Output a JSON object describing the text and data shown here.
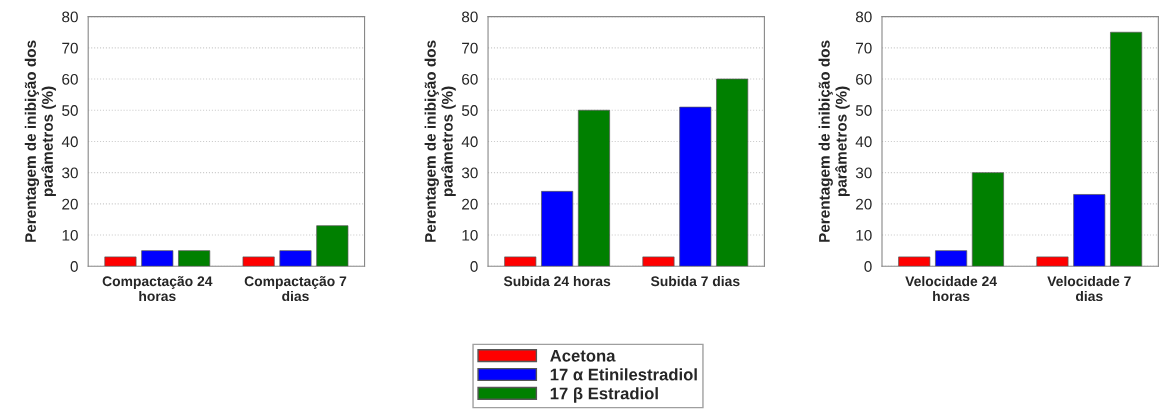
{
  "chart_data": [
    {
      "type": "bar",
      "ylabel": "Perentagem de inibição dos parâmetros (%)",
      "categories": [
        "Compactação 24\nhoras",
        "Compactação 7\ndias"
      ],
      "ylim": [
        0,
        80
      ],
      "yticks": [
        0,
        10,
        20,
        30,
        40,
        50,
        60,
        70,
        80
      ],
      "grid": "y",
      "legend": "bottom",
      "series": [
        {
          "name": "Acetona",
          "color": "#ff0000",
          "values": [
            3,
            3
          ]
        },
        {
          "name": "17 α Etinilestradiol",
          "color": "#0000ff",
          "values": [
            5,
            5
          ]
        },
        {
          "name": "17 β Estradiol",
          "color": "#008000",
          "values": [
            5,
            13
          ]
        }
      ]
    },
    {
      "type": "bar",
      "ylabel": "Perentagem de inibição dos parâmetros (%)",
      "categories": [
        "Subida 24 horas",
        "Subida 7 dias"
      ],
      "ylim": [
        0,
        80
      ],
      "yticks": [
        0,
        10,
        20,
        30,
        40,
        50,
        60,
        70,
        80
      ],
      "grid": "y",
      "series": [
        {
          "color": "#ff0000",
          "values": [
            3,
            3
          ]
        },
        {
          "color": "#0000ff",
          "values": [
            24,
            51
          ]
        },
        {
          "color": "#008000",
          "values": [
            50,
            60
          ]
        }
      ]
    },
    {
      "type": "bar",
      "ylabel": "Perentagem de inibição dos parâmetros (%)",
      "categories": [
        "Velocidade 24\nhoras",
        "Velocidade 7\ndias"
      ],
      "ylim": [
        0,
        80
      ],
      "yticks": [
        0,
        10,
        20,
        30,
        40,
        50,
        60,
        70,
        80
      ],
      "grid": "y",
      "series": [
        {
          "color": "#ff0000",
          "values": [
            3,
            3
          ]
        },
        {
          "color": "#0000ff",
          "values": [
            5,
            23
          ]
        },
        {
          "color": "#008000",
          "values": [
            30,
            75
          ]
        }
      ]
    }
  ]
}
